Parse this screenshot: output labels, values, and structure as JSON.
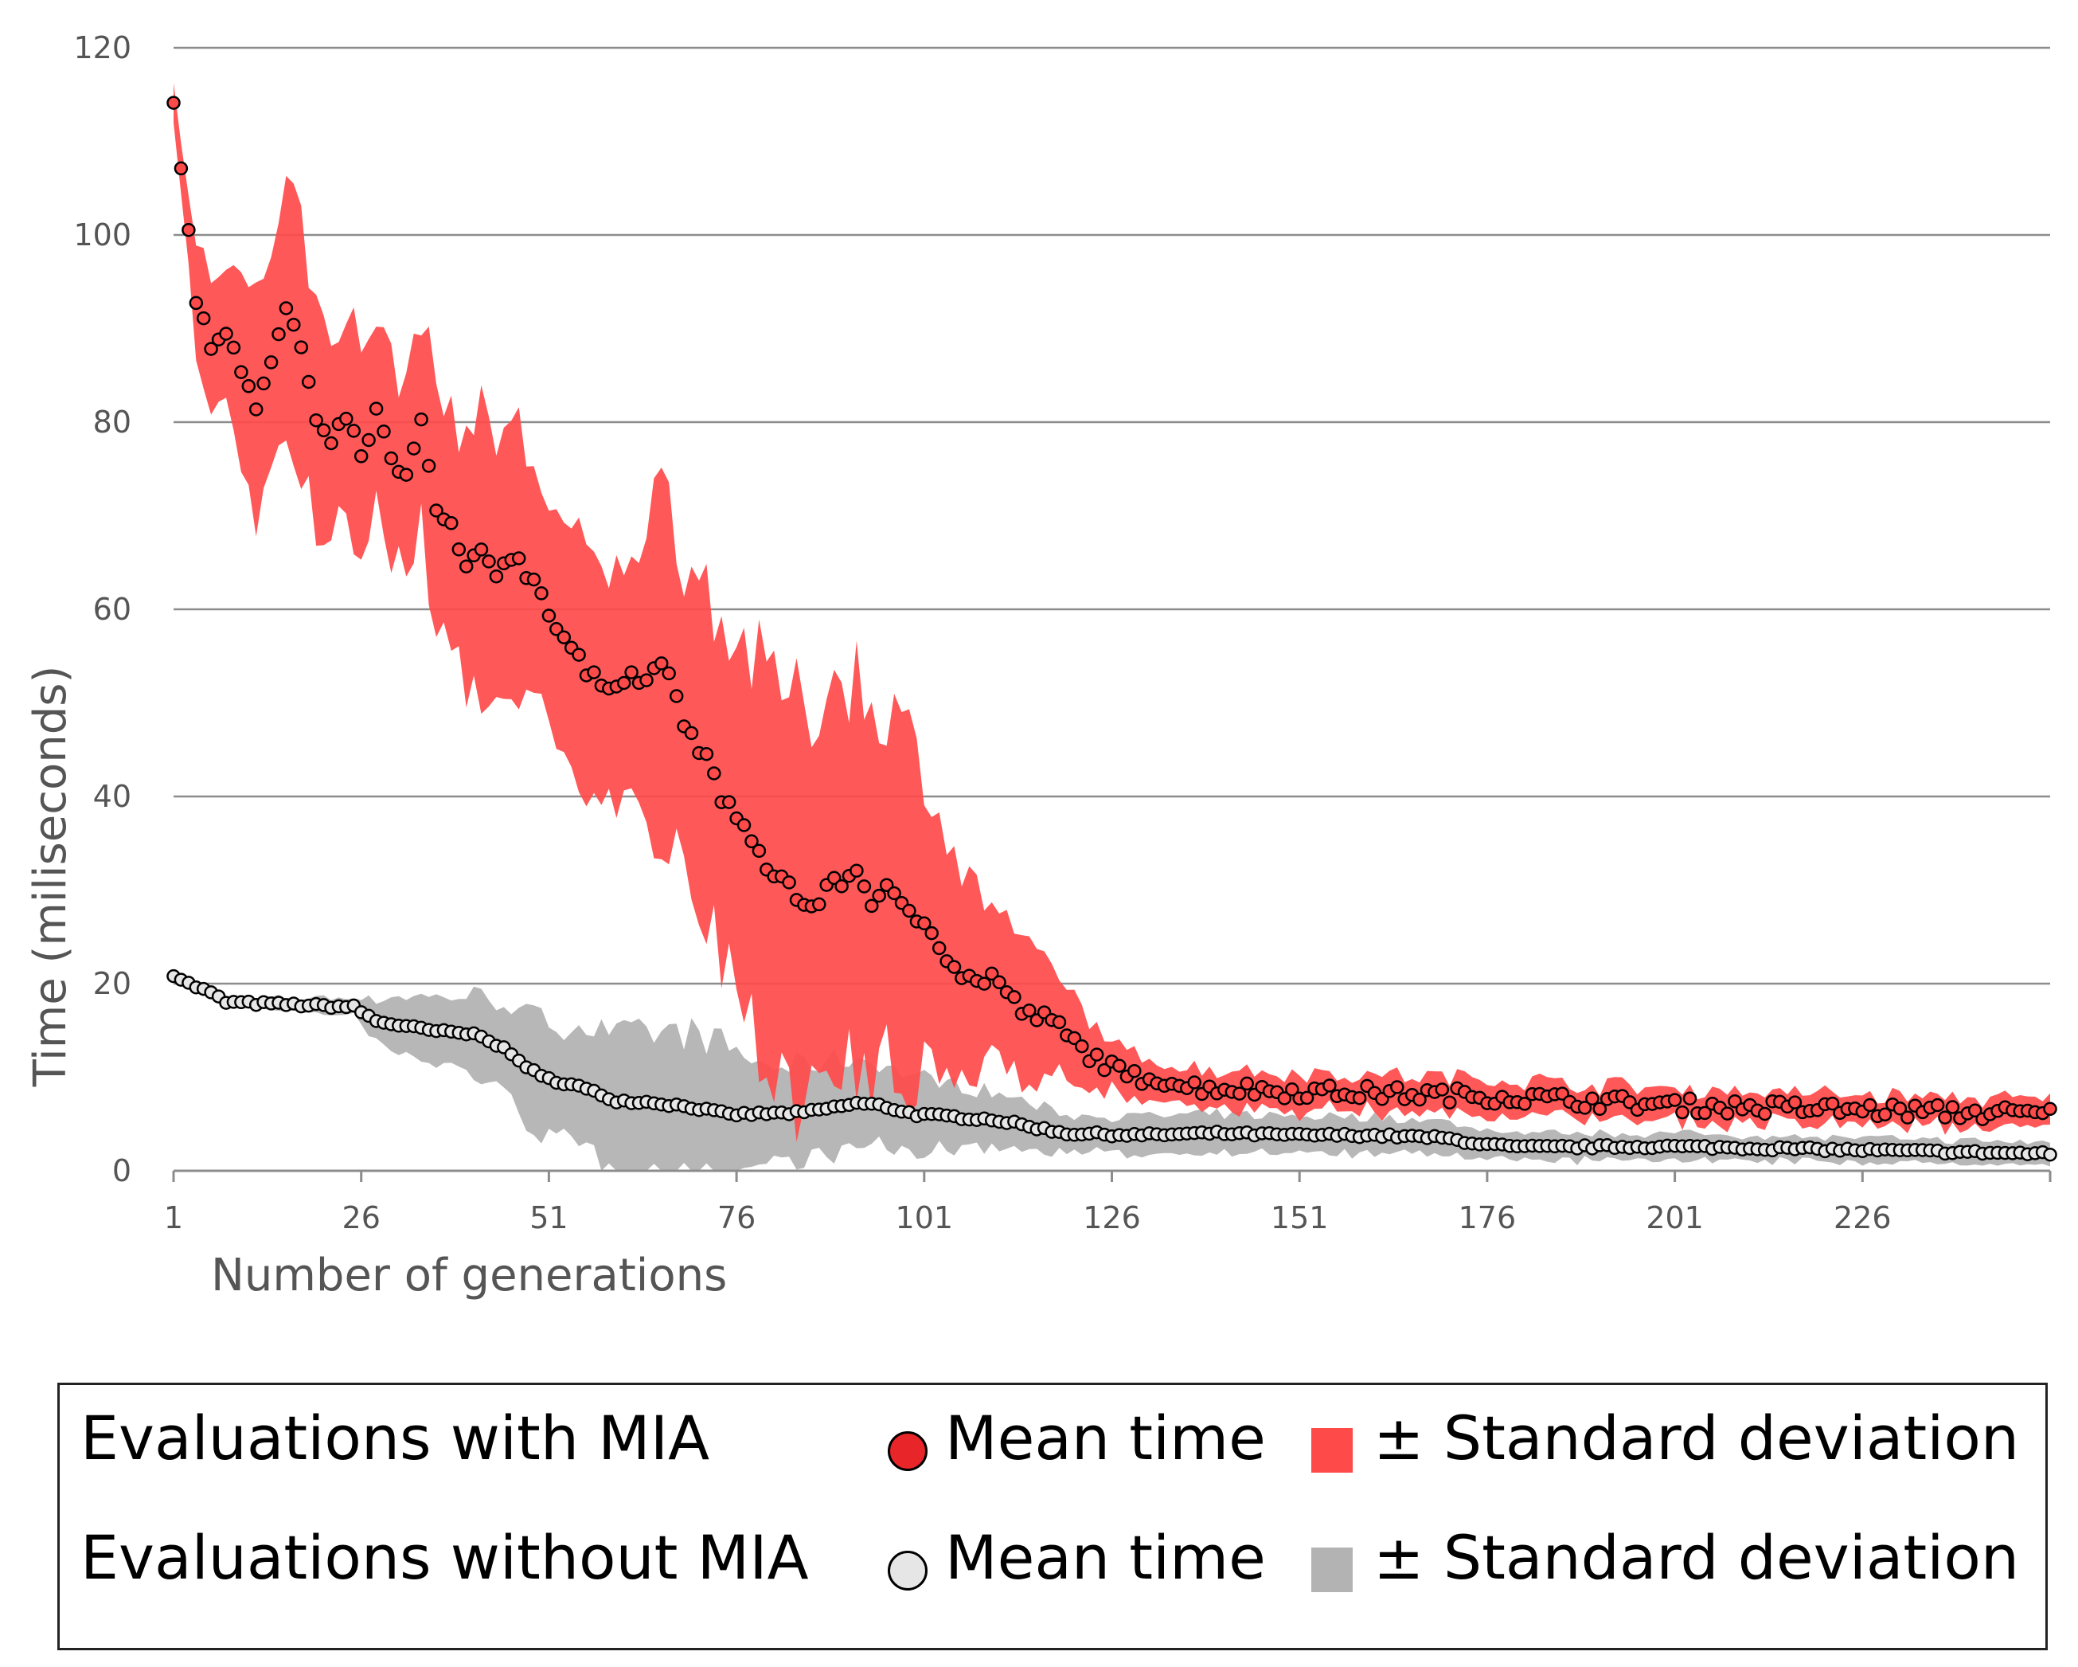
{
  "chart_data": {
    "type": "scatter",
    "title": "",
    "xlabel": "Number of generations",
    "ylabel": "Time (miliseconds)",
    "xlim": [
      1,
      251
    ],
    "ylim": [
      0,
      120
    ],
    "x_ticks": [
      "1",
      "26",
      "51",
      "76",
      "101",
      "126",
      "151",
      "176",
      "201",
      "226"
    ],
    "y_ticks": [
      "0",
      "20",
      "40",
      "60",
      "80",
      "100",
      "120"
    ],
    "grid": "horizontal",
    "legend_position": "bottom",
    "series": [
      {
        "name": "Evaluations with MIA",
        "marker_color": "#e8262a",
        "band_color": "#ff4a4a",
        "mean_keypoints": [
          [
            1,
            114
          ],
          [
            2,
            107
          ],
          [
            3,
            101
          ],
          [
            4,
            93
          ],
          [
            6,
            88
          ],
          [
            8,
            90
          ],
          [
            10,
            86
          ],
          [
            12,
            82
          ],
          [
            16,
            92
          ],
          [
            18,
            88
          ],
          [
            20,
            80
          ],
          [
            22,
            77
          ],
          [
            24,
            81
          ],
          [
            26,
            76
          ],
          [
            28,
            81
          ],
          [
            30,
            76
          ],
          [
            32,
            74
          ],
          [
            34,
            80
          ],
          [
            36,
            70
          ],
          [
            38,
            69
          ],
          [
            40,
            64
          ],
          [
            42,
            66
          ],
          [
            44,
            64
          ],
          [
            46,
            66
          ],
          [
            50,
            62
          ],
          [
            52,
            58
          ],
          [
            54,
            56
          ],
          [
            56,
            53
          ],
          [
            58,
            52
          ],
          [
            62,
            53
          ],
          [
            64,
            52
          ],
          [
            66,
            55
          ],
          [
            68,
            50
          ],
          [
            70,
            46
          ],
          [
            72,
            44
          ],
          [
            74,
            40
          ],
          [
            76,
            38
          ],
          [
            78,
            35
          ],
          [
            80,
            32
          ],
          [
            82,
            32
          ],
          [
            84,
            29
          ],
          [
            86,
            28
          ],
          [
            88,
            30
          ],
          [
            92,
            32
          ],
          [
            94,
            29
          ],
          [
            96,
            30
          ],
          [
            98,
            28
          ],
          [
            100,
            27
          ],
          [
            102,
            26
          ],
          [
            104,
            23
          ],
          [
            106,
            21
          ],
          [
            108,
            20
          ],
          [
            110,
            21
          ],
          [
            112,
            19
          ],
          [
            114,
            17
          ],
          [
            118,
            16
          ],
          [
            122,
            13
          ],
          [
            126,
            11
          ],
          [
            128,
            10
          ],
          [
            132,
            10
          ],
          [
            136,
            9
          ],
          [
            150,
            8.5
          ],
          [
            176,
            8
          ],
          [
            201,
            7
          ],
          [
            226,
            6.5
          ],
          [
            251,
            6
          ]
        ],
        "std_keypoints": [
          [
            1,
            2
          ],
          [
            5,
            7
          ],
          [
            10,
            10
          ],
          [
            15,
            14
          ],
          [
            20,
            12
          ],
          [
            30,
            10
          ],
          [
            40,
            14
          ],
          [
            45,
            15
          ],
          [
            50,
            12
          ],
          [
            60,
            12
          ],
          [
            65,
            18
          ],
          [
            70,
            18
          ],
          [
            80,
            20
          ],
          [
            90,
            22
          ],
          [
            100,
            18
          ],
          [
            105,
            12
          ],
          [
            110,
            8
          ],
          [
            120,
            5
          ],
          [
            125,
            3
          ],
          [
            130,
            2
          ],
          [
            151,
            2
          ],
          [
            251,
            1.5
          ]
        ]
      },
      {
        "name": "Evaluations without MIA",
        "marker_color": "#e6e6e6",
        "band_color": "#b3b3b3",
        "mean_keypoints": [
          [
            1,
            21
          ],
          [
            3,
            20
          ],
          [
            6,
            19
          ],
          [
            8,
            18
          ],
          [
            25,
            17.5
          ],
          [
            28,
            16
          ],
          [
            35,
            15
          ],
          [
            42,
            14.5
          ],
          [
            45,
            13
          ],
          [
            50,
            10
          ],
          [
            55,
            9
          ],
          [
            60,
            7.5
          ],
          [
            65,
            7.3
          ],
          [
            70,
            6.8
          ],
          [
            75,
            6
          ],
          [
            85,
            6.2
          ],
          [
            92,
            7.2
          ],
          [
            95,
            7
          ],
          [
            100,
            6
          ],
          [
            110,
            5.5
          ],
          [
            120,
            4
          ],
          [
            130,
            3.8
          ],
          [
            140,
            4
          ],
          [
            150,
            3.8
          ],
          [
            160,
            3.8
          ],
          [
            170,
            3.5
          ],
          [
            176,
            2.8
          ],
          [
            180,
            2.5
          ],
          [
            200,
            2.6
          ],
          [
            226,
            2.2
          ],
          [
            251,
            1.8
          ]
        ],
        "std_keypoints": [
          [
            1,
            0.3
          ],
          [
            25,
            1
          ],
          [
            30,
            3
          ],
          [
            40,
            4
          ],
          [
            50,
            6
          ],
          [
            60,
            7
          ],
          [
            70,
            8
          ],
          [
            75,
            7
          ],
          [
            80,
            5
          ],
          [
            90,
            5
          ],
          [
            100,
            4
          ],
          [
            110,
            3
          ],
          [
            120,
            2
          ],
          [
            140,
            2
          ],
          [
            160,
            2
          ],
          [
            180,
            1.5
          ],
          [
            251,
            1.2
          ]
        ]
      }
    ]
  },
  "legend": {
    "row1_title": "Evaluations with MIA",
    "row2_title": "Evaluations without MIA",
    "mean_label": "Mean time",
    "std_label": "± Standard deviation"
  }
}
